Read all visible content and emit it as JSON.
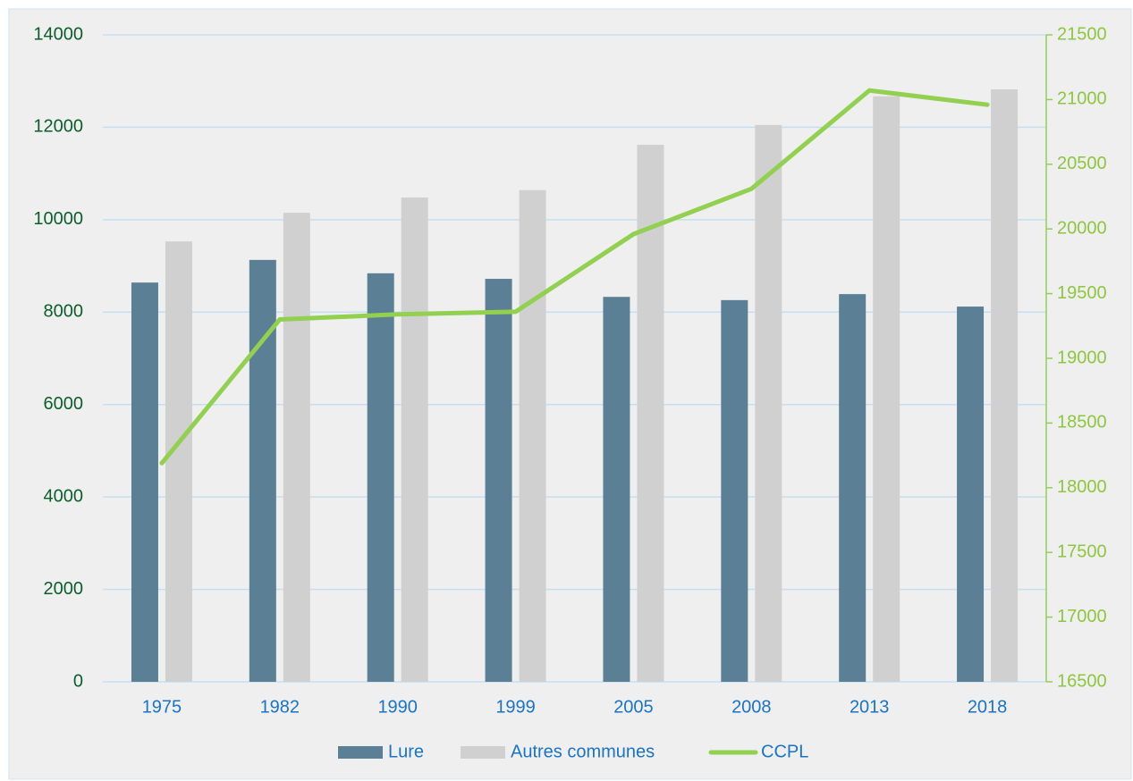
{
  "chart_data": {
    "type": "bar",
    "categories": [
      "1975",
      "1982",
      "1990",
      "1999",
      "2005",
      "2008",
      "2013",
      "2018"
    ],
    "series": [
      {
        "name": "Lure",
        "color": "#5b7f95",
        "values": [
          8640,
          9130,
          8840,
          8720,
          8330,
          8260,
          8390,
          8120
        ]
      },
      {
        "name": "Autres communes",
        "color": "#d0d0d0",
        "values": [
          9530,
          10150,
          10480,
          10640,
          11620,
          12050,
          12670,
          12820
        ]
      },
      {
        "name": "CCPL",
        "type": "line",
        "axis": "y2",
        "color": "#92d050",
        "values": [
          18190,
          19300,
          19340,
          19360,
          19960,
          20310,
          21070,
          20960
        ]
      }
    ],
    "ylim": [
      0,
      14000
    ],
    "yticks": [
      0,
      2000,
      4000,
      6000,
      8000,
      10000,
      12000,
      14000
    ],
    "y2lim": [
      16500,
      21500
    ],
    "y2ticks": [
      16500,
      17000,
      17500,
      18000,
      18500,
      19000,
      19500,
      20000,
      20500,
      21000,
      21500
    ],
    "grid": true,
    "legend": "bottom"
  }
}
